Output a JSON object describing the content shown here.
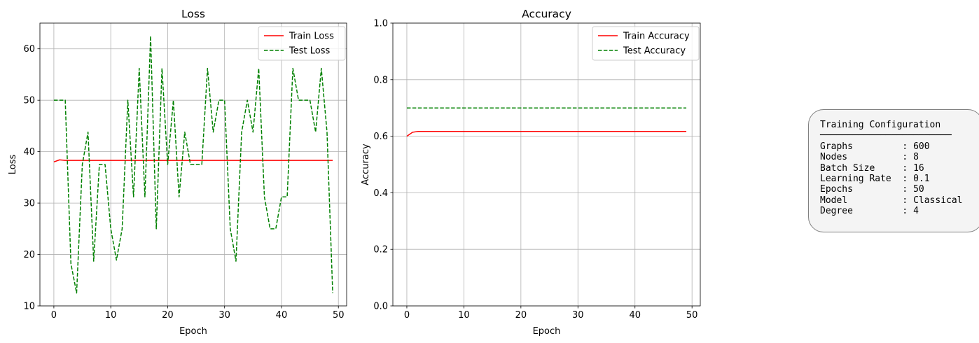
{
  "chart_data": [
    {
      "type": "line",
      "title": "Loss",
      "xlabel": "Epoch",
      "ylabel": "Loss",
      "xlim": [
        -2.45,
        51.45
      ],
      "ylim": [
        10,
        65
      ],
      "xticks": [
        0,
        10,
        20,
        30,
        40,
        50
      ],
      "yticks": [
        10,
        20,
        30,
        40,
        50,
        60
      ],
      "grid": true,
      "legend": "top-right",
      "series": [
        {
          "name": "Train Loss",
          "color": "#ff0000",
          "dash": "solid",
          "x": [
            0,
            1,
            2,
            3,
            4,
            5,
            6,
            7,
            8,
            9,
            10,
            11,
            12,
            13,
            14,
            15,
            16,
            17,
            18,
            19,
            20,
            21,
            22,
            23,
            24,
            25,
            26,
            27,
            28,
            29,
            30,
            31,
            32,
            33,
            34,
            35,
            36,
            37,
            38,
            39,
            40,
            41,
            42,
            43,
            44,
            45,
            46,
            47,
            48,
            49
          ],
          "values": [
            38.0,
            38.4,
            38.3,
            38.3,
            38.3,
            38.3,
            38.3,
            38.3,
            38.3,
            38.3,
            38.3,
            38.3,
            38.3,
            38.3,
            38.3,
            38.3,
            38.3,
            38.3,
            38.3,
            38.3,
            38.3,
            38.3,
            38.3,
            38.3,
            38.3,
            38.3,
            38.3,
            38.3,
            38.3,
            38.3,
            38.3,
            38.3,
            38.3,
            38.3,
            38.3,
            38.3,
            38.3,
            38.3,
            38.3,
            38.3,
            38.3,
            38.3,
            38.3,
            38.3,
            38.3,
            38.3,
            38.3,
            38.3,
            38.3,
            38.3
          ]
        },
        {
          "name": "Test Loss",
          "color": "#008000",
          "dash": "dashed",
          "x": [
            0,
            1,
            2,
            3,
            4,
            5,
            6,
            7,
            8,
            9,
            10,
            11,
            12,
            13,
            14,
            15,
            16,
            17,
            18,
            19,
            20,
            21,
            22,
            23,
            24,
            25,
            26,
            27,
            28,
            29,
            30,
            31,
            32,
            33,
            34,
            35,
            36,
            37,
            38,
            39,
            40,
            41,
            42,
            43,
            44,
            45,
            46,
            47,
            48,
            49
          ],
          "values": [
            50.0,
            50.0,
            50.0,
            18.2,
            12.5,
            37.5,
            43.8,
            18.7,
            37.5,
            37.5,
            25.0,
            18.9,
            25.0,
            50.0,
            31.2,
            56.2,
            31.2,
            62.5,
            25.0,
            56.2,
            37.5,
            50.0,
            31.2,
            43.8,
            37.5,
            37.5,
            37.5,
            56.2,
            43.8,
            50.0,
            50.0,
            25.0,
            18.7,
            43.8,
            50.0,
            43.8,
            56.2,
            31.2,
            25.0,
            25.0,
            31.2,
            31.2,
            56.2,
            50.0,
            50.0,
            50.0,
            43.8,
            56.2,
            43.8,
            12.5
          ]
        }
      ]
    },
    {
      "type": "line",
      "title": "Accuracy",
      "xlabel": "Epoch",
      "ylabel": "Accuracy",
      "xlim": [
        -2.45,
        51.45
      ],
      "ylim": [
        0.0,
        1.0
      ],
      "xticks": [
        0,
        10,
        20,
        30,
        40,
        50
      ],
      "yticks": [
        0.0,
        0.2,
        0.4,
        0.6,
        0.8,
        1.0
      ],
      "grid": true,
      "legend": "top-right",
      "series": [
        {
          "name": "Train Accuracy",
          "color": "#ff0000",
          "dash": "solid",
          "x": [
            0,
            1,
            2,
            3,
            4,
            5,
            6,
            7,
            8,
            9,
            10,
            11,
            12,
            13,
            14,
            15,
            16,
            17,
            18,
            19,
            20,
            21,
            22,
            23,
            24,
            25,
            26,
            27,
            28,
            29,
            30,
            31,
            32,
            33,
            34,
            35,
            36,
            37,
            38,
            39,
            40,
            41,
            42,
            43,
            44,
            45,
            46,
            47,
            48,
            49
          ],
          "values": [
            0.6,
            0.614,
            0.617,
            0.617,
            0.617,
            0.617,
            0.617,
            0.617,
            0.617,
            0.617,
            0.617,
            0.617,
            0.617,
            0.617,
            0.617,
            0.617,
            0.617,
            0.617,
            0.617,
            0.617,
            0.617,
            0.617,
            0.617,
            0.617,
            0.617,
            0.617,
            0.617,
            0.617,
            0.617,
            0.617,
            0.617,
            0.617,
            0.617,
            0.617,
            0.617,
            0.617,
            0.617,
            0.617,
            0.617,
            0.617,
            0.617,
            0.617,
            0.617,
            0.617,
            0.617,
            0.617,
            0.617,
            0.617,
            0.617,
            0.617
          ]
        },
        {
          "name": "Test Accuracy",
          "color": "#008000",
          "dash": "dashed",
          "x": [
            0,
            1,
            2,
            3,
            4,
            5,
            6,
            7,
            8,
            9,
            10,
            11,
            12,
            13,
            14,
            15,
            16,
            17,
            18,
            19,
            20,
            21,
            22,
            23,
            24,
            25,
            26,
            27,
            28,
            29,
            30,
            31,
            32,
            33,
            34,
            35,
            36,
            37,
            38,
            39,
            40,
            41,
            42,
            43,
            44,
            45,
            46,
            47,
            48,
            49
          ],
          "values": [
            0.7,
            0.7,
            0.7,
            0.7,
            0.7,
            0.7,
            0.7,
            0.7,
            0.7,
            0.7,
            0.7,
            0.7,
            0.7,
            0.7,
            0.7,
            0.7,
            0.7,
            0.7,
            0.7,
            0.7,
            0.7,
            0.7,
            0.7,
            0.7,
            0.7,
            0.7,
            0.7,
            0.7,
            0.7,
            0.7,
            0.7,
            0.7,
            0.7,
            0.7,
            0.7,
            0.7,
            0.7,
            0.7,
            0.7,
            0.7,
            0.7,
            0.7,
            0.7,
            0.7,
            0.7,
            0.7,
            0.7,
            0.7,
            0.7,
            0.7
          ]
        }
      ]
    }
  ],
  "config_box": {
    "title": "Training Configuration",
    "divider": "────────────────────────",
    "rows": [
      {
        "key": "Graphs",
        "value": "600"
      },
      {
        "key": "Nodes",
        "value": "8"
      },
      {
        "key": "Batch Size",
        "value": "16"
      },
      {
        "key": "Learning Rate",
        "value": "0.1"
      },
      {
        "key": "Epochs",
        "value": "50"
      },
      {
        "key": "Model",
        "value": "Classical"
      },
      {
        "key": "Degree",
        "value": "4"
      }
    ]
  }
}
